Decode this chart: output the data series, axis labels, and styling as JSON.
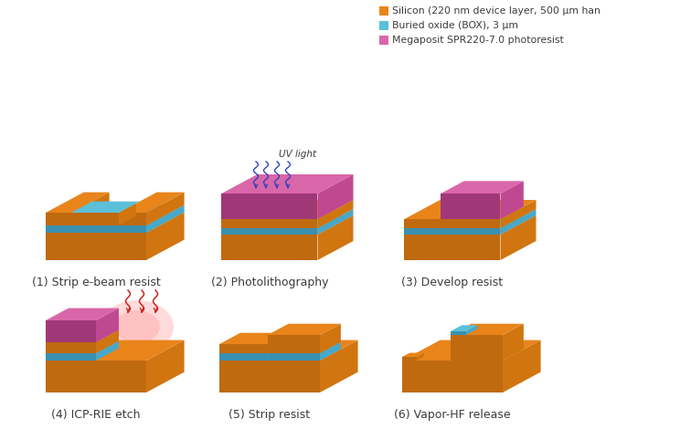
{
  "legend_items": [
    {
      "label": "Silicon (220 nm device layer, 500 μm han",
      "color": "#E8841A"
    },
    {
      "label": "Buried oxide (BOX), 3 μm",
      "color": "#5BC0D8"
    },
    {
      "label": "Megaposit SPR220-7.0 photoresist",
      "color": "#D966A8"
    }
  ],
  "colors": {
    "si_top": "#E8841A",
    "si_left": "#C06A10",
    "si_right": "#D07510",
    "box_top": "#5BC0D8",
    "box_left": "#3A90B0",
    "box_right": "#48A8C8",
    "res_top": "#D966A8",
    "res_left": "#A03878",
    "res_right": "#C04890",
    "bg": "#FFFFFF",
    "text": "#3C3C3C",
    "uv": "#3344BB",
    "rie": "#CC2222"
  },
  "figsize": [
    7.44,
    4.7
  ],
  "dpi": 100
}
